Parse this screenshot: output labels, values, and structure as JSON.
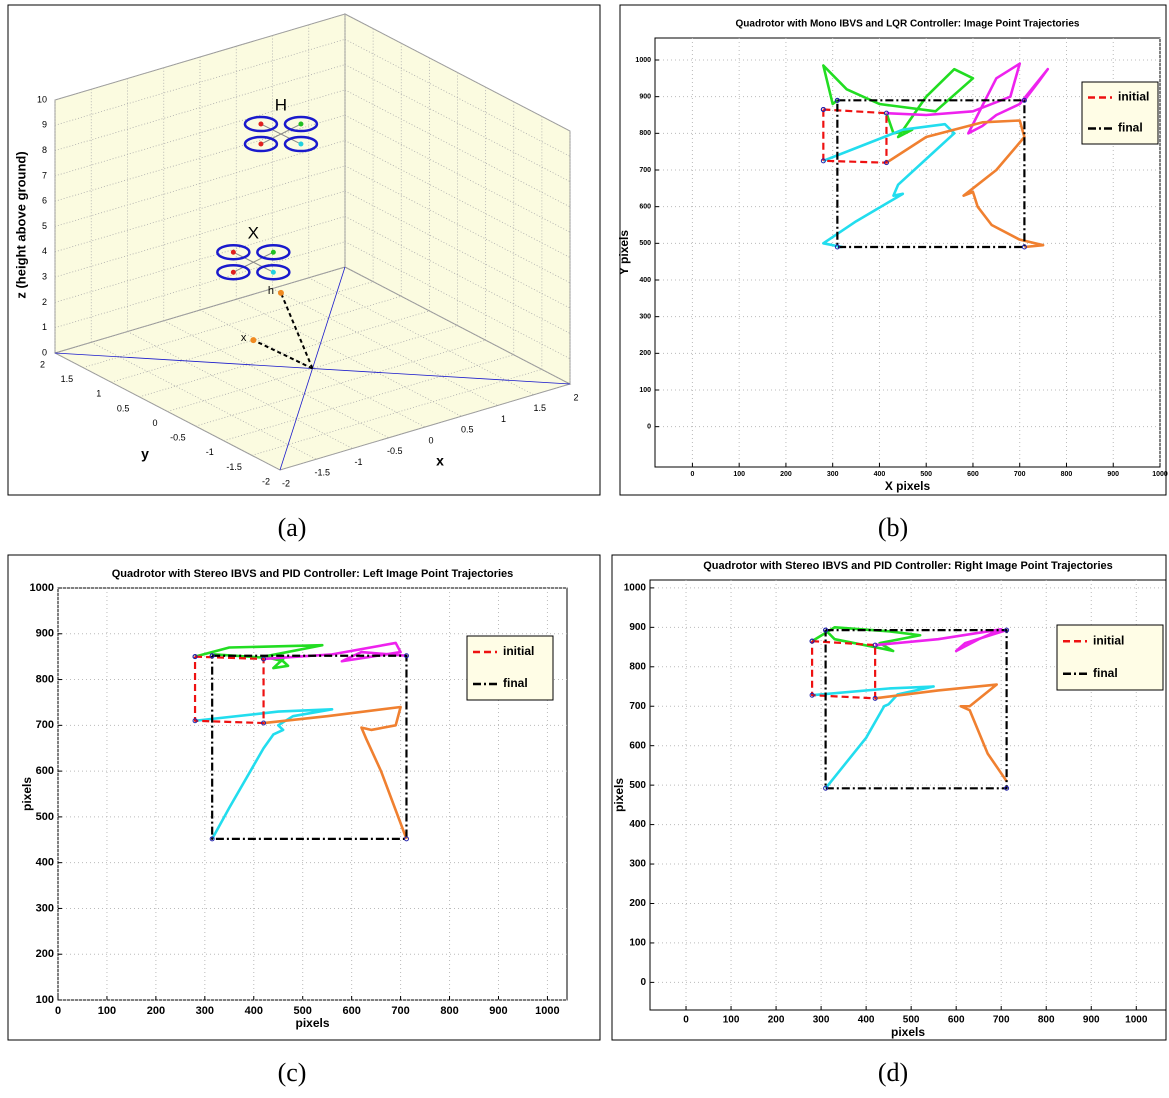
{
  "chart_data": [
    {
      "type": "scatter3d",
      "caption": "(a)",
      "zlabel": "z (height above ground)",
      "xlabel": "x",
      "ylabel": "y",
      "xlim": [
        -2,
        2
      ],
      "ylim": [
        -2,
        2
      ],
      "zlim": [
        0,
        10
      ],
      "xticks": [
        -2,
        -1.5,
        -1,
        -0.5,
        0,
        0.5,
        1,
        1.5,
        2
      ],
      "yticks": [
        2,
        1.5,
        1,
        0.5,
        0,
        -0.5,
        -1,
        -1.5,
        -2
      ],
      "zticks": [
        0,
        1,
        2,
        3,
        4,
        5,
        6,
        7,
        8,
        9,
        10
      ],
      "grid": true,
      "frame_color": "#1a1acc",
      "rotor_colors": [
        "#e02020",
        "#20c020",
        "#e02020",
        "#20d0e0"
      ],
      "target_color": "#f08a20",
      "quadrotors": [
        {
          "label": "H",
          "x": 1.0,
          "y": 1.85,
          "z": 6.2
        },
        {
          "label": "X",
          "x": -0.04,
          "y": 1.0,
          "z": 3.0
        }
      ],
      "targets": [
        {
          "label": "h",
          "x": 1.0,
          "y": 1.85,
          "z": 0
        },
        {
          "label": "x",
          "x": -0.04,
          "y": 1.0,
          "z": 0
        }
      ]
    },
    {
      "type": "line",
      "caption": "(b)",
      "title": "Quadrotor with Mono IBVS and LQR Controller: Image Point Trajectories",
      "xlabel": "X pixels",
      "ylabel": "Y pixels",
      "xlim": [
        -80,
        1000
      ],
      "ylim": [
        -110,
        1060
      ],
      "xticks": [
        0,
        100,
        200,
        300,
        400,
        500,
        600,
        700,
        800,
        900,
        1000
      ],
      "yticks": [
        0,
        100,
        200,
        300,
        400,
        500,
        600,
        700,
        800,
        900,
        1000
      ],
      "grid": true,
      "legend": "upper right",
      "series": [
        {
          "color": "#22dd22",
          "x": [
            415,
            430,
            470,
            440,
            500,
            560,
            600,
            520,
            400,
            330,
            280,
            300,
            310
          ],
          "values": [
            855,
            800,
            810,
            790,
            900,
            975,
            950,
            860,
            880,
            920,
            985,
            880,
            890
          ]
        },
        {
          "color": "#ee22ee",
          "x": [
            415,
            500,
            600,
            680,
            700,
            650,
            590,
            620,
            650,
            700,
            760,
            740,
            710
          ],
          "values": [
            855,
            850,
            860,
            900,
            990,
            950,
            800,
            820,
            850,
            880,
            975,
            940,
            890
          ]
        },
        {
          "color": "#22ddee",
          "x": [
            280,
            350,
            450,
            540,
            560,
            500,
            440,
            430,
            450,
            350,
            280,
            320,
            310
          ],
          "values": [
            725,
            760,
            810,
            825,
            800,
            730,
            660,
            630,
            635,
            560,
            500,
            490,
            490
          ]
        },
        {
          "color": "#f08030",
          "x": [
            415,
            500,
            620,
            700,
            710,
            650,
            580,
            600,
            610,
            640,
            700,
            750,
            710
          ],
          "values": [
            720,
            790,
            830,
            835,
            790,
            700,
            630,
            640,
            600,
            550,
            510,
            495,
            490
          ]
        },
        {
          "name": "initial",
          "color": "#ee1111",
          "linestyle": "--",
          "x": [
            280,
            415,
            415,
            280,
            280
          ],
          "values": [
            865,
            855,
            720,
            725,
            865
          ]
        },
        {
          "name": "final",
          "color": "#000000",
          "linestyle": "-.",
          "x": [
            310,
            710,
            710,
            310,
            310
          ],
          "values": [
            890,
            890,
            490,
            490,
            890
          ]
        }
      ]
    },
    {
      "type": "line",
      "caption": "(c)",
      "title": "Quadrotor with Stereo IBVS and PID Controller: Left Image Point Trajectories",
      "xlabel": "pixels",
      "ylabel": "pixels",
      "xlim": [
        0,
        1040
      ],
      "ylim": [
        100,
        1000
      ],
      "xticks": [
        0,
        100,
        200,
        300,
        400,
        500,
        600,
        700,
        800,
        900,
        1000
      ],
      "yticks": [
        100,
        200,
        300,
        400,
        500,
        600,
        700,
        800,
        900,
        1000
      ],
      "grid": true,
      "legend": "upper right",
      "series": [
        {
          "color": "#22dd22",
          "x": [
            280,
            350,
            540,
            420,
            460,
            470,
            440,
            460,
            320,
            315
          ],
          "values": [
            850,
            870,
            875,
            850,
            840,
            830,
            825,
            845,
            855,
            852
          ]
        },
        {
          "color": "#ee22ee",
          "x": [
            420,
            560,
            690,
            700,
            640,
            580,
            620,
            712
          ],
          "values": [
            845,
            855,
            880,
            860,
            850,
            840,
            860,
            852
          ]
        },
        {
          "color": "#22ddee",
          "x": [
            280,
            450,
            560,
            480,
            450,
            460,
            440,
            420,
            350,
            315
          ],
          "values": [
            710,
            730,
            735,
            720,
            700,
            690,
            680,
            650,
            520,
            452
          ]
        },
        {
          "color": "#f08030",
          "x": [
            420,
            550,
            700,
            690,
            640,
            620,
            630,
            660,
            712
          ],
          "values": [
            705,
            720,
            740,
            700,
            690,
            695,
            670,
            600,
            452
          ]
        },
        {
          "name": "initial",
          "color": "#ee1111",
          "linestyle": "--",
          "x": [
            280,
            420,
            420,
            280,
            280
          ],
          "values": [
            850,
            845,
            705,
            710,
            850
          ]
        },
        {
          "name": "final",
          "color": "#000000",
          "linestyle": "-.",
          "x": [
            315,
            712,
            712,
            315,
            315
          ],
          "values": [
            852,
            852,
            452,
            452,
            852
          ]
        }
      ]
    },
    {
      "type": "line",
      "caption": "(d)",
      "title": "Quadrotor with Stereo IBVS and PID Controller: Right Image Point Trajectories",
      "xlabel": "pixels",
      "ylabel": "pixels",
      "xlim": [
        -80,
        1066
      ],
      "ylim": [
        -70,
        1020
      ],
      "xticks": [
        0,
        100,
        200,
        300,
        400,
        500,
        600,
        700,
        800,
        900,
        1000
      ],
      "yticks": [
        0,
        100,
        200,
        300,
        400,
        500,
        600,
        700,
        800,
        900,
        1000
      ],
      "grid": true,
      "legend": "upper right",
      "series": [
        {
          "color": "#22dd22",
          "x": [
            280,
            330,
            450,
            520,
            430,
            460,
            440,
            330,
            310
          ],
          "values": [
            865,
            900,
            890,
            880,
            860,
            840,
            845,
            870,
            893
          ]
        },
        {
          "color": "#ee22ee",
          "x": [
            420,
            560,
            700,
            650,
            600,
            620,
            712
          ],
          "values": [
            855,
            870,
            895,
            870,
            840,
            860,
            893
          ]
        },
        {
          "color": "#22ddee",
          "x": [
            280,
            450,
            550,
            470,
            450,
            440,
            400,
            310
          ],
          "values": [
            728,
            745,
            750,
            730,
            705,
            700,
            620,
            492
          ]
        },
        {
          "color": "#f08030",
          "x": [
            420,
            560,
            690,
            630,
            610,
            630,
            670,
            712
          ],
          "values": [
            720,
            740,
            755,
            700,
            700,
            690,
            580,
            510
          ]
        },
        {
          "name": "initial",
          "color": "#ee1111",
          "linestyle": "--",
          "x": [
            280,
            420,
            420,
            280,
            280
          ],
          "values": [
            865,
            855,
            720,
            728,
            865
          ]
        },
        {
          "name": "final",
          "color": "#000000",
          "linestyle": "-.",
          "x": [
            310,
            712,
            712,
            310,
            310
          ],
          "values": [
            893,
            893,
            492,
            492,
            893
          ]
        }
      ]
    }
  ]
}
